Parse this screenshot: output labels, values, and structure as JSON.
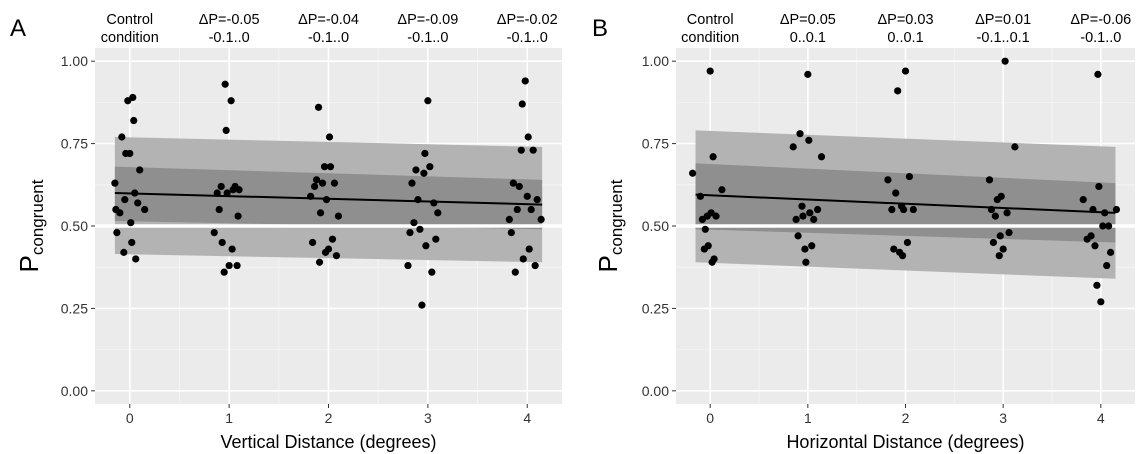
{
  "colors": {
    "panel_bg": "#ebebeb",
    "grid_major": "#ffffff",
    "band_outer": "#b3b3b3",
    "band_inner": "#8f8f8f",
    "mean_line": "#000000",
    "points": "#000000",
    "ref_line": "#ffffff"
  },
  "chart_data": [
    {
      "type": "scatter",
      "panel_label": "A",
      "xlabel": "Vertical Distance (degrees)",
      "ylabel_main": "P",
      "ylabel_sub": "congruent",
      "xlim": [
        -0.35,
        4.35
      ],
      "ylim": [
        -0.04,
        1.04
      ],
      "x_ticks": [
        0,
        1,
        2,
        3,
        4
      ],
      "x_tick_labels": [
        "0",
        "1",
        "2",
        "3",
        "4"
      ],
      "y_ticks": [
        0,
        0.25,
        0.5,
        0.75,
        1
      ],
      "y_tick_labels": [
        "0.00",
        "0.25",
        "0.50",
        "0.75",
        "1.00"
      ],
      "reference_line_y": 0.5,
      "top_labels": [
        {
          "x": 0,
          "line1": "Control",
          "line2": "condition"
        },
        {
          "x": 1,
          "line1": "ΔP=-0.05",
          "line2": "-0.1..0"
        },
        {
          "x": 2,
          "line1": "ΔP=-0.04",
          "line2": "-0.1..0"
        },
        {
          "x": 3,
          "line1": "ΔP=-0.09",
          "line2": "-0.1..0"
        },
        {
          "x": 4,
          "line1": "ΔP=-0.02",
          "line2": "-0.1..0"
        }
      ],
      "mean_line": {
        "x": [
          -0.15,
          4.15
        ],
        "y": [
          0.6,
          0.565
        ]
      },
      "band_outer": {
        "x": [
          -0.15,
          4.15
        ],
        "upper": [
          0.77,
          0.74
        ],
        "lower": [
          0.415,
          0.39
        ]
      },
      "band_inner": {
        "x": [
          -0.15,
          4.15
        ],
        "upper": [
          0.68,
          0.64
        ],
        "lower": [
          0.515,
          0.49
        ]
      },
      "points": [
        {
          "x": -0.15,
          "y": 0.63
        },
        {
          "x": -0.14,
          "y": 0.55
        },
        {
          "x": -0.13,
          "y": 0.48
        },
        {
          "x": -0.1,
          "y": 0.54
        },
        {
          "x": -0.08,
          "y": 0.77
        },
        {
          "x": -0.06,
          "y": 0.42
        },
        {
          "x": -0.05,
          "y": 0.58
        },
        {
          "x": -0.04,
          "y": 0.72
        },
        {
          "x": -0.02,
          "y": 0.88
        },
        {
          "x": 0.0,
          "y": 0.72
        },
        {
          "x": 0.01,
          "y": 0.51
        },
        {
          "x": 0.02,
          "y": 0.45
        },
        {
          "x": 0.03,
          "y": 0.89
        },
        {
          "x": 0.04,
          "y": 0.82
        },
        {
          "x": 0.05,
          "y": 0.6
        },
        {
          "x": 0.06,
          "y": 0.4
        },
        {
          "x": 0.08,
          "y": 0.57
        },
        {
          "x": 0.1,
          "y": 0.67
        },
        {
          "x": 0.15,
          "y": 0.55
        },
        {
          "x": 0.85,
          "y": 0.48
        },
        {
          "x": 0.88,
          "y": 0.6
        },
        {
          "x": 0.9,
          "y": 0.55
        },
        {
          "x": 0.92,
          "y": 0.62
        },
        {
          "x": 0.93,
          "y": 0.45
        },
        {
          "x": 0.95,
          "y": 0.36
        },
        {
          "x": 0.96,
          "y": 0.93
        },
        {
          "x": 0.97,
          "y": 0.79
        },
        {
          "x": 0.98,
          "y": 0.6
        },
        {
          "x": 1.0,
          "y": 0.38
        },
        {
          "x": 1.02,
          "y": 0.88
        },
        {
          "x": 1.03,
          "y": 0.43
        },
        {
          "x": 1.04,
          "y": 0.61
        },
        {
          "x": 1.06,
          "y": 0.62
        },
        {
          "x": 1.08,
          "y": 0.38
        },
        {
          "x": 1.09,
          "y": 0.53
        },
        {
          "x": 1.1,
          "y": 0.61
        },
        {
          "x": 1.82,
          "y": 0.59
        },
        {
          "x": 1.84,
          "y": 0.45
        },
        {
          "x": 1.86,
          "y": 0.62
        },
        {
          "x": 1.88,
          "y": 0.64
        },
        {
          "x": 1.9,
          "y": 0.86
        },
        {
          "x": 1.91,
          "y": 0.39
        },
        {
          "x": 1.92,
          "y": 0.54
        },
        {
          "x": 1.94,
          "y": 0.63
        },
        {
          "x": 1.96,
          "y": 0.68
        },
        {
          "x": 1.97,
          "y": 0.42
        },
        {
          "x": 1.98,
          "y": 0.58
        },
        {
          "x": 2.0,
          "y": 0.43
        },
        {
          "x": 2.01,
          "y": 0.77
        },
        {
          "x": 2.02,
          "y": 0.68
        },
        {
          "x": 2.04,
          "y": 0.46
        },
        {
          "x": 2.06,
          "y": 0.63
        },
        {
          "x": 2.08,
          "y": 0.41
        },
        {
          "x": 2.1,
          "y": 0.53
        },
        {
          "x": 2.8,
          "y": 0.38
        },
        {
          "x": 2.82,
          "y": 0.48
        },
        {
          "x": 2.84,
          "y": 0.63
        },
        {
          "x": 2.86,
          "y": 0.51
        },
        {
          "x": 2.88,
          "y": 0.67
        },
        {
          "x": 2.9,
          "y": 0.58
        },
        {
          "x": 2.92,
          "y": 0.49
        },
        {
          "x": 2.94,
          "y": 0.26
        },
        {
          "x": 2.96,
          "y": 0.66
        },
        {
          "x": 2.97,
          "y": 0.72
        },
        {
          "x": 2.98,
          "y": 0.44
        },
        {
          "x": 3.0,
          "y": 0.88
        },
        {
          "x": 3.02,
          "y": 0.68
        },
        {
          "x": 3.04,
          "y": 0.36
        },
        {
          "x": 3.06,
          "y": 0.57
        },
        {
          "x": 3.08,
          "y": 0.46
        },
        {
          "x": 3.1,
          "y": 0.54
        },
        {
          "x": 3.82,
          "y": 0.52
        },
        {
          "x": 3.84,
          "y": 0.48
        },
        {
          "x": 3.86,
          "y": 0.63
        },
        {
          "x": 3.88,
          "y": 0.36
        },
        {
          "x": 3.9,
          "y": 0.55
        },
        {
          "x": 3.92,
          "y": 0.62
        },
        {
          "x": 3.94,
          "y": 0.73
        },
        {
          "x": 3.95,
          "y": 0.87
        },
        {
          "x": 3.96,
          "y": 0.4
        },
        {
          "x": 3.98,
          "y": 0.94
        },
        {
          "x": 4.0,
          "y": 0.59
        },
        {
          "x": 4.01,
          "y": 0.77
        },
        {
          "x": 4.02,
          "y": 0.43
        },
        {
          "x": 4.04,
          "y": 0.55
        },
        {
          "x": 4.06,
          "y": 0.73
        },
        {
          "x": 4.08,
          "y": 0.38
        },
        {
          "x": 4.1,
          "y": 0.58
        },
        {
          "x": 4.14,
          "y": 0.52
        }
      ]
    },
    {
      "type": "scatter",
      "panel_label": "B",
      "xlabel": "Horizontal Distance (degrees)",
      "ylabel_main": "P",
      "ylabel_sub": "congruent",
      "xlim": [
        -0.35,
        4.35
      ],
      "ylim": [
        -0.04,
        1.04
      ],
      "x_ticks": [
        0,
        1,
        2,
        3,
        4
      ],
      "x_tick_labels": [
        "0",
        "1",
        "2",
        "3",
        "4"
      ],
      "y_ticks": [
        0,
        0.25,
        0.5,
        0.75,
        1
      ],
      "y_tick_labels": [
        "0.00",
        "0.25",
        "0.50",
        "0.75",
        "1.00"
      ],
      "reference_line_y": 0.5,
      "top_labels": [
        {
          "x": 0,
          "line1": "Control",
          "line2": "condition"
        },
        {
          "x": 1,
          "line1": "ΔP=0.05",
          "line2": "0..0.1"
        },
        {
          "x": 2,
          "line1": "ΔP=0.03",
          "line2": "0..0.1"
        },
        {
          "x": 3,
          "line1": "ΔP=0.01",
          "line2": "-0.1..0.1"
        },
        {
          "x": 4,
          "line1": "ΔP=-0.06",
          "line2": "-0.1..0"
        }
      ],
      "mean_line": {
        "x": [
          -0.15,
          4.15
        ],
        "y": [
          0.595,
          0.54
        ]
      },
      "band_outer": {
        "x": [
          -0.15,
          4.15
        ],
        "upper": [
          0.79,
          0.74
        ],
        "lower": [
          0.39,
          0.34
        ]
      },
      "band_inner": {
        "x": [
          -0.15,
          4.15
        ],
        "upper": [
          0.69,
          0.63
        ],
        "lower": [
          0.49,
          0.45
        ]
      },
      "points": [
        {
          "x": -0.18,
          "y": 0.66
        },
        {
          "x": -0.1,
          "y": 0.59
        },
        {
          "x": -0.08,
          "y": 0.52
        },
        {
          "x": -0.06,
          "y": 0.43
        },
        {
          "x": -0.05,
          "y": 0.49
        },
        {
          "x": -0.03,
          "y": 0.53
        },
        {
          "x": -0.02,
          "y": 0.44
        },
        {
          "x": 0.0,
          "y": 0.97
        },
        {
          "x": 0.01,
          "y": 0.54
        },
        {
          "x": 0.02,
          "y": 0.39
        },
        {
          "x": 0.03,
          "y": 0.71
        },
        {
          "x": 0.04,
          "y": 0.4
        },
        {
          "x": 0.06,
          "y": 0.53
        },
        {
          "x": 0.12,
          "y": 0.61
        },
        {
          "x": 0.85,
          "y": 0.74
        },
        {
          "x": 0.88,
          "y": 0.52
        },
        {
          "x": 0.9,
          "y": 0.47
        },
        {
          "x": 0.92,
          "y": 0.78
        },
        {
          "x": 0.94,
          "y": 0.56
        },
        {
          "x": 0.95,
          "y": 0.53
        },
        {
          "x": 0.97,
          "y": 0.43
        },
        {
          "x": 0.98,
          "y": 0.39
        },
        {
          "x": 1.0,
          "y": 0.96
        },
        {
          "x": 1.01,
          "y": 0.76
        },
        {
          "x": 1.02,
          "y": 0.54
        },
        {
          "x": 1.04,
          "y": 0.44
        },
        {
          "x": 1.06,
          "y": 0.52
        },
        {
          "x": 1.1,
          "y": 0.55
        },
        {
          "x": 1.14,
          "y": 0.71
        },
        {
          "x": 1.82,
          "y": 0.64
        },
        {
          "x": 1.86,
          "y": 0.55
        },
        {
          "x": 1.88,
          "y": 0.43
        },
        {
          "x": 1.9,
          "y": 0.6
        },
        {
          "x": 1.92,
          "y": 0.91
        },
        {
          "x": 1.94,
          "y": 0.42
        },
        {
          "x": 1.96,
          "y": 0.56
        },
        {
          "x": 1.97,
          "y": 0.41
        },
        {
          "x": 1.98,
          "y": 0.55
        },
        {
          "x": 2.0,
          "y": 0.97
        },
        {
          "x": 2.02,
          "y": 0.45
        },
        {
          "x": 2.04,
          "y": 0.65
        },
        {
          "x": 2.08,
          "y": 0.55
        },
        {
          "x": 2.86,
          "y": 0.64
        },
        {
          "x": 2.88,
          "y": 0.55
        },
        {
          "x": 2.9,
          "y": 0.45
        },
        {
          "x": 2.92,
          "y": 0.53
        },
        {
          "x": 2.94,
          "y": 0.58
        },
        {
          "x": 2.96,
          "y": 0.41
        },
        {
          "x": 2.97,
          "y": 0.47
        },
        {
          "x": 2.98,
          "y": 0.59
        },
        {
          "x": 3.0,
          "y": 0.43
        },
        {
          "x": 3.02,
          "y": 1.0
        },
        {
          "x": 3.04,
          "y": 0.54
        },
        {
          "x": 3.06,
          "y": 0.48
        },
        {
          "x": 3.12,
          "y": 0.74
        },
        {
          "x": 3.82,
          "y": 0.58
        },
        {
          "x": 3.86,
          "y": 0.46
        },
        {
          "x": 3.9,
          "y": 0.47
        },
        {
          "x": 3.92,
          "y": 0.55
        },
        {
          "x": 3.94,
          "y": 0.44
        },
        {
          "x": 3.96,
          "y": 0.32
        },
        {
          "x": 3.97,
          "y": 0.96
        },
        {
          "x": 3.98,
          "y": 0.62
        },
        {
          "x": 4.0,
          "y": 0.27
        },
        {
          "x": 4.02,
          "y": 0.5
        },
        {
          "x": 4.04,
          "y": 0.54
        },
        {
          "x": 4.06,
          "y": 0.38
        },
        {
          "x": 4.08,
          "y": 0.5
        },
        {
          "x": 4.1,
          "y": 0.42
        },
        {
          "x": 4.16,
          "y": 0.55
        }
      ]
    }
  ]
}
